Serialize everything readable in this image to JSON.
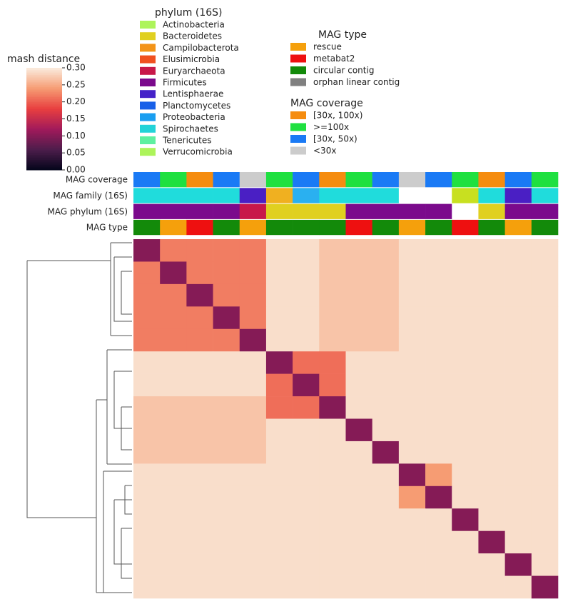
{
  "chart_data": {
    "type": "heatmap",
    "colorbar_title": "mash distance",
    "clim": [
      0,
      0.3
    ],
    "colorbar_ticks": [
      {
        "value": 0,
        "label": "0.00"
      },
      0.05,
      {
        "value": 0.1,
        "label": "0.10"
      },
      0.15,
      {
        "value": 0.2,
        "label": "0.20"
      },
      0.25,
      {
        "value": 0.3,
        "label": "0.30"
      }
    ],
    "colormap": [
      "#03051a",
      "#4c1d4b",
      "#a11a5b",
      "#e83f3f",
      "#f69c73",
      "#faebdd"
    ],
    "values": [
      [
        0.1,
        0.22,
        0.22,
        0.22,
        0.22,
        0.29,
        0.29,
        0.27,
        0.27,
        0.27,
        0.29,
        0.29,
        0.29,
        0.29,
        0.29,
        0.29
      ],
      [
        0.22,
        0.1,
        0.22,
        0.22,
        0.22,
        0.29,
        0.29,
        0.27,
        0.27,
        0.27,
        0.29,
        0.29,
        0.29,
        0.29,
        0.29,
        0.29
      ],
      [
        0.22,
        0.22,
        0.1,
        0.22,
        0.22,
        0.29,
        0.29,
        0.27,
        0.27,
        0.27,
        0.29,
        0.29,
        0.29,
        0.29,
        0.29,
        0.29
      ],
      [
        0.22,
        0.22,
        0.22,
        0.1,
        0.22,
        0.29,
        0.29,
        0.27,
        0.27,
        0.27,
        0.29,
        0.29,
        0.29,
        0.29,
        0.29,
        0.29
      ],
      [
        0.22,
        0.22,
        0.22,
        0.22,
        0.1,
        0.29,
        0.29,
        0.27,
        0.27,
        0.27,
        0.29,
        0.29,
        0.29,
        0.29,
        0.29,
        0.29
      ],
      [
        0.29,
        0.29,
        0.29,
        0.29,
        0.29,
        0.1,
        0.21,
        0.21,
        0.29,
        0.29,
        0.29,
        0.29,
        0.29,
        0.29,
        0.29,
        0.29
      ],
      [
        0.29,
        0.29,
        0.29,
        0.29,
        0.29,
        0.21,
        0.1,
        0.21,
        0.29,
        0.29,
        0.29,
        0.29,
        0.29,
        0.29,
        0.29,
        0.29
      ],
      [
        0.27,
        0.27,
        0.27,
        0.27,
        0.27,
        0.21,
        0.21,
        0.1,
        0.29,
        0.29,
        0.29,
        0.29,
        0.29,
        0.29,
        0.29,
        0.29
      ],
      [
        0.27,
        0.27,
        0.27,
        0.27,
        0.27,
        0.29,
        0.29,
        0.29,
        0.1,
        0.29,
        0.29,
        0.29,
        0.29,
        0.29,
        0.29,
        0.29
      ],
      [
        0.27,
        0.27,
        0.27,
        0.27,
        0.27,
        0.29,
        0.29,
        0.29,
        0.29,
        0.1,
        0.29,
        0.29,
        0.29,
        0.29,
        0.29,
        0.29
      ],
      [
        0.29,
        0.29,
        0.29,
        0.29,
        0.29,
        0.29,
        0.29,
        0.29,
        0.29,
        0.29,
        0.1,
        0.24,
        0.29,
        0.29,
        0.29,
        0.29
      ],
      [
        0.29,
        0.29,
        0.29,
        0.29,
        0.29,
        0.29,
        0.29,
        0.29,
        0.29,
        0.29,
        0.24,
        0.1,
        0.29,
        0.29,
        0.29,
        0.29
      ],
      [
        0.29,
        0.29,
        0.29,
        0.29,
        0.29,
        0.29,
        0.29,
        0.29,
        0.29,
        0.29,
        0.29,
        0.29,
        0.1,
        0.29,
        0.29,
        0.29
      ],
      [
        0.29,
        0.29,
        0.29,
        0.29,
        0.29,
        0.29,
        0.29,
        0.29,
        0.29,
        0.29,
        0.29,
        0.29,
        0.29,
        0.1,
        0.29,
        0.29
      ],
      [
        0.29,
        0.29,
        0.29,
        0.29,
        0.29,
        0.29,
        0.29,
        0.29,
        0.29,
        0.29,
        0.29,
        0.29,
        0.29,
        0.29,
        0.1,
        0.29
      ],
      [
        0.29,
        0.29,
        0.29,
        0.29,
        0.29,
        0.29,
        0.29,
        0.29,
        0.29,
        0.29,
        0.29,
        0.29,
        0.29,
        0.29,
        0.29,
        0.1
      ]
    ],
    "legends": [
      {
        "title": "phylum (16S)",
        "entries": [
          {
            "name": "Actinobacteria",
            "color": "#adf45a"
          },
          {
            "name": "Bacteroidetes",
            "color": "#e0d020"
          },
          {
            "name": "Campilobacterota",
            "color": "#f39418"
          },
          {
            "name": "Elusimicrobia",
            "color": "#f05020"
          },
          {
            "name": "Euryarchaeota",
            "color": "#c8184a"
          },
          {
            "name": "Firmicutes",
            "color": "#7b0a8c"
          },
          {
            "name": "Lentisphaerae",
            "color": "#4522c8"
          },
          {
            "name": "Planctomycetes",
            "color": "#1860e8"
          },
          {
            "name": "Proteobacteria",
            "color": "#1a9ef0"
          },
          {
            "name": "Spirochaetes",
            "color": "#22d3d8"
          },
          {
            "name": "Tenericutes",
            "color": "#5ef0a0"
          },
          {
            "name": "Verrucomicrobia",
            "color": "#adf45a"
          }
        ]
      },
      {
        "title": "MAG type",
        "entries": [
          {
            "name": "rescue",
            "color": "#f5a00c"
          },
          {
            "name": "metabat2",
            "color": "#ee1010"
          },
          {
            "name": "circular contig",
            "color": "#138a0a"
          },
          {
            "name": "orphan linear contig",
            "color": "#808080"
          }
        ]
      },
      {
        "title": "MAG coverage",
        "entries": [
          {
            "name": "[30x, 100x)",
            "color": "#f58c0f"
          },
          {
            "name": ">=100x",
            "color": "#1fe040"
          },
          {
            "name": "[30x, 50x)",
            "color": "#1a7af5"
          },
          {
            "name": "<30x",
            "color": "#cccccc"
          }
        ]
      }
    ],
    "tracks": [
      {
        "label": "MAG coverage",
        "values": [
          "[30x, 50x)",
          ">=100x",
          "[30x, 100x)",
          "[30x, 50x)",
          "<30x",
          ">=100x",
          "[30x, 50x)",
          "[30x, 100x)",
          ">=100x",
          "[30x, 50x)",
          "<30x",
          "[30x, 50x)",
          ">=100x",
          "[30x, 100x)",
          "[30x, 50x)",
          ">=100x"
        ]
      },
      {
        "label": "MAG family (16S)",
        "colors": [
          "#20dcdc",
          "#20dcdc",
          "#20dcdc",
          "#20dcdc",
          "#4a1fc4",
          "#f0b020",
          "#2ab0f0",
          "#20dcdc",
          "#20dcdc",
          "#20dcdc",
          null,
          null,
          "#c8e020",
          "#20dcdc",
          "#4a1fc4",
          "#20dcdc"
        ]
      },
      {
        "label": "MAG phylum (16S)",
        "values": [
          "Firmicutes",
          "Firmicutes",
          "Firmicutes",
          "Firmicutes",
          "Euryarchaeota",
          "Bacteroidetes",
          "Bacteroidetes",
          "Bacteroidetes",
          "Firmicutes",
          "Firmicutes",
          "Firmicutes",
          "Firmicutes",
          null,
          "Bacteroidetes",
          "Firmicutes",
          "Firmicutes"
        ]
      },
      {
        "label": "MAG type",
        "values": [
          "circular contig",
          "rescue",
          "metabat2",
          "circular contig",
          "rescue",
          "circular contig",
          "circular contig",
          "circular contig",
          "metabat2",
          "circular contig",
          "rescue",
          "circular contig",
          "metabat2",
          "circular contig",
          "rescue",
          "circular contig"
        ]
      }
    ]
  }
}
